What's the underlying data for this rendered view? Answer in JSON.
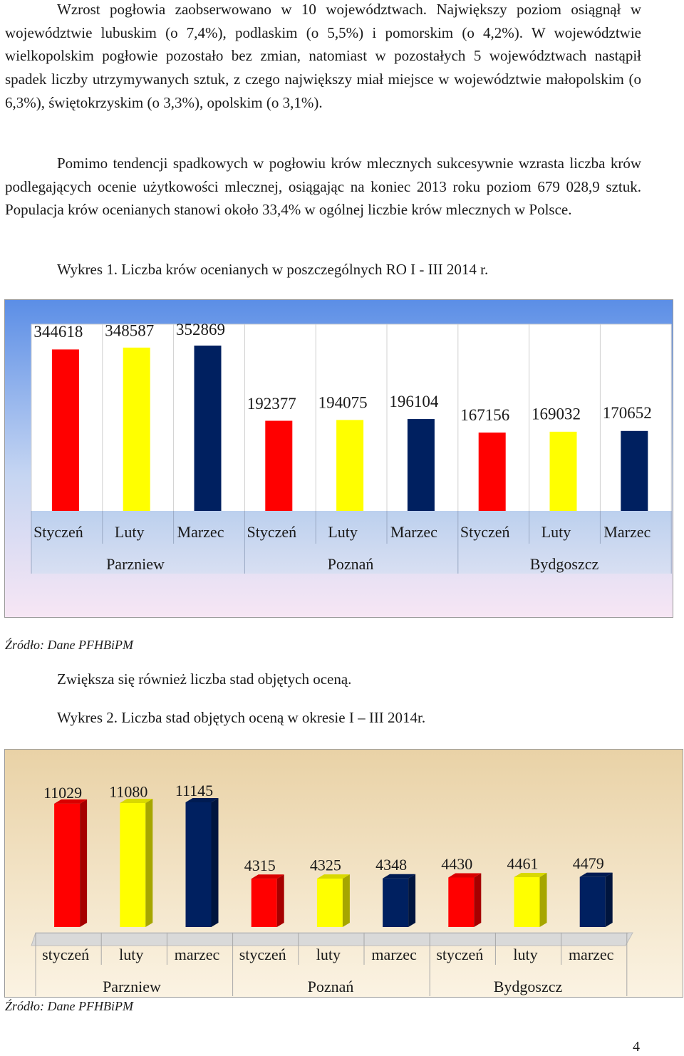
{
  "paragraphs": [
    "Wzrost pogłowia zaobserwowano w 10 województwach. Największy poziom osiągnął w województwie lubuskim (o 7,4%), podlaskim (o 5,5%) i pomorskim (o 4,2%). W województwie wielkopolskim pogłowie pozostało bez zmian, natomiast w pozostałych 5 województwach nastąpił spadek liczby utrzymywanych sztuk, z czego największy miał miejsce w województwie małopolskim (o 6,3%), świętokrzyskim (o 3,3%), opolskim (o 3,1%).",
    "Pomimo tendencji spadkowych w pogłowiu krów mlecznych sukcesywnie wzrasta liczba krów podlegających ocenie użytkowości mlecznej, osiągając na koniec 2013 roku poziom 679 028,9 sztuk. Populacja krów ocenianych stanowi około 33,4% w ogólnej liczbie krów mlecznych w Polsce."
  ],
  "captions": {
    "chart1": "Wykres 1. Liczba krów ocenianych w poszczególnych RO I - III 2014 r.",
    "between": "Zwiększa się również liczba stad objętych oceną.",
    "chart2": "Wykres 2. Liczba stad objętych oceną w okresie I – III 2014r."
  },
  "sources": {
    "chart1": "Źródło: Dane PFHBiPM",
    "chart2": "Źródło: Dane PFHBiPM"
  },
  "page_number": "4",
  "colors": {
    "red": "#ff0000",
    "yellow": "#ffff00",
    "navy": "#002060"
  },
  "chart_data": [
    {
      "type": "bar",
      "groups": [
        "Parzniew",
        "Poznań",
        "Bydgoszcz"
      ],
      "categories": [
        "Styczeń",
        "Luty",
        "Marzec",
        "Styczeń",
        "Luty",
        "Marzec",
        "Styczeń",
        "Luty",
        "Marzec"
      ],
      "values": [
        344618,
        348587,
        352869,
        192377,
        194075,
        196104,
        167156,
        169032,
        170652
      ],
      "value_labels": [
        "344618",
        "348587",
        "352869",
        "192377",
        "194075",
        "196104",
        "167156",
        "169032",
        "170652"
      ],
      "bar_colors": [
        "#ff0000",
        "#ffff00",
        "#002060",
        "#ff0000",
        "#ffff00",
        "#002060",
        "#ff0000",
        "#ffff00",
        "#002060"
      ],
      "ylim": [
        0,
        400000
      ],
      "grid": true
    },
    {
      "type": "bar",
      "groups": [
        "Parzniew",
        "Poznań",
        "Bydgoszcz"
      ],
      "categories": [
        "styczeń",
        "luty",
        "marzec",
        "styczeń",
        "luty",
        "marzec",
        "styczeń",
        "luty",
        "marzec"
      ],
      "values": [
        11029,
        11080,
        11145,
        4315,
        4325,
        4348,
        4430,
        4461,
        4479
      ],
      "value_labels": [
        "11029",
        "11080",
        "11145",
        "4315",
        "4325",
        "4348",
        "4430",
        "4461",
        "4479"
      ],
      "bar_colors": [
        "#ff0000",
        "#ffff00",
        "#002060",
        "#ff0000",
        "#ffff00",
        "#002060",
        "#ff0000",
        "#ffff00",
        "#002060"
      ],
      "ylim": [
        0,
        12600
      ],
      "grid": false
    }
  ]
}
